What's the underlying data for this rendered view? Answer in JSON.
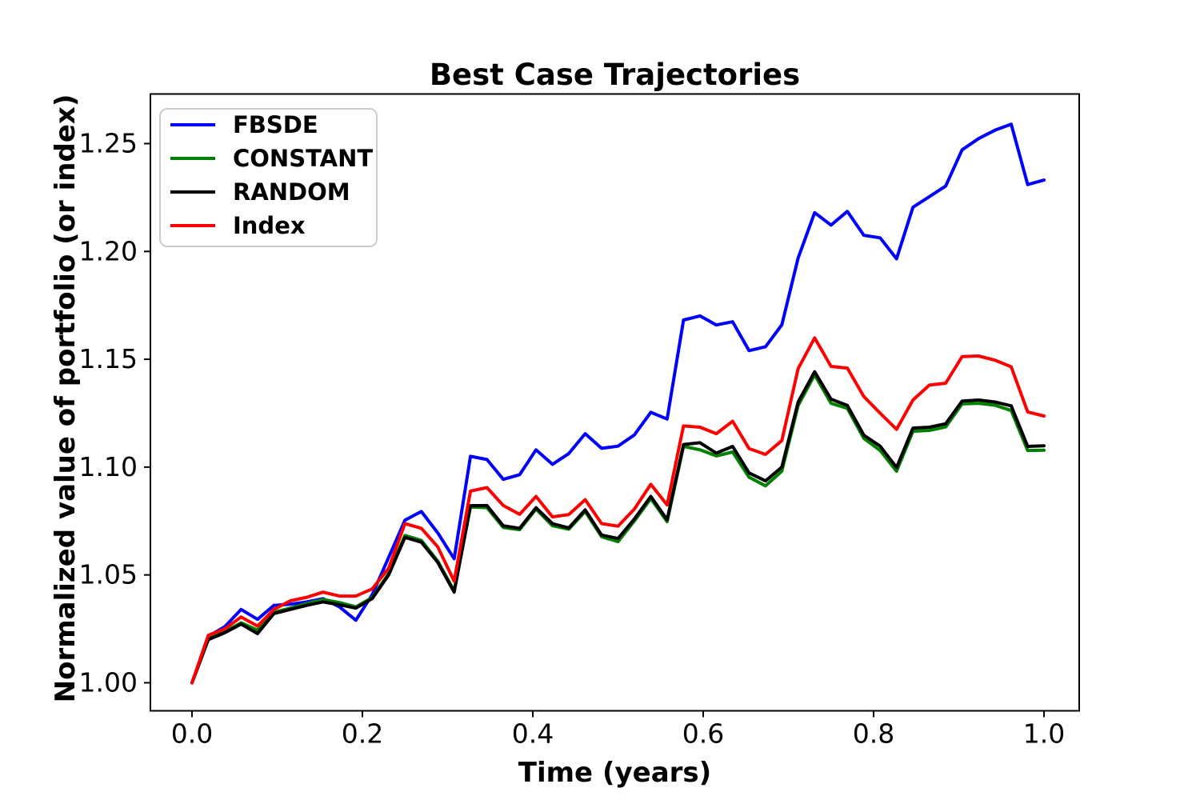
{
  "figure": {
    "background": "#ffffff",
    "spine_color": "#000000",
    "text_color": "#000000",
    "legend": {
      "position": "upper left",
      "border_color": "#cccccc",
      "fill": "#ffffff",
      "entries": [
        {
          "label": "FBSDE",
          "color": "#0000ff"
        },
        {
          "label": "CONSTANT",
          "color": "#008000"
        },
        {
          "label": "RANDOM",
          "color": "#000000"
        },
        {
          "label": "Index",
          "color": "#ff0000"
        }
      ]
    }
  },
  "chart_data": {
    "type": "line",
    "title": "Best Case Trajectories",
    "xlabel": "Time (years)",
    "ylabel": "Normalized value of portfolio (or index)",
    "xlim": [
      -0.0488,
      1.0413
    ],
    "ylim": [
      0.987,
      1.273
    ],
    "xticks": [
      0.0,
      0.2,
      0.4,
      0.6,
      0.8,
      1.0
    ],
    "yticks": [
      1.0,
      1.05,
      1.1,
      1.15,
      1.2,
      1.25
    ],
    "grid": false,
    "legend_position": "upper left",
    "x": [
      0.0,
      0.0192,
      0.0385,
      0.0577,
      0.0769,
      0.0962,
      0.1154,
      0.1346,
      0.1538,
      0.1731,
      0.1923,
      0.2115,
      0.2308,
      0.25,
      0.2692,
      0.2885,
      0.3077,
      0.3269,
      0.3462,
      0.3654,
      0.3846,
      0.4038,
      0.4231,
      0.4423,
      0.4615,
      0.4808,
      0.5,
      0.5192,
      0.5385,
      0.5577,
      0.5769,
      0.5962,
      0.6154,
      0.6346,
      0.6538,
      0.6731,
      0.6923,
      0.7115,
      0.7308,
      0.75,
      0.7692,
      0.7885,
      0.8077,
      0.8269,
      0.8462,
      0.8654,
      0.8846,
      0.9038,
      0.9231,
      0.9423,
      0.9615,
      0.9808,
      1.0
    ],
    "series": [
      {
        "name": "FBSDE",
        "color": "#0000ff",
        "values": [
          1.0,
          1.0215,
          1.026,
          1.034,
          1.0294,
          1.0359,
          1.0364,
          1.0375,
          1.039,
          1.0352,
          1.029,
          1.0408,
          1.0581,
          1.0754,
          1.0794,
          1.0695,
          1.0575,
          1.105,
          1.1035,
          1.0943,
          1.0965,
          1.108,
          1.1013,
          1.1063,
          1.1155,
          1.1087,
          1.1097,
          1.1149,
          1.1254,
          1.1223,
          1.1682,
          1.1701,
          1.1659,
          1.1674,
          1.154,
          1.1558,
          1.166,
          1.197,
          1.218,
          1.2122,
          1.2186,
          1.2075,
          1.2063,
          1.1966,
          1.2205,
          1.2254,
          1.2303,
          1.2471,
          1.2523,
          1.2562,
          1.259,
          1.231,
          1.2331
        ]
      },
      {
        "name": "CONSTANT",
        "color": "#008000",
        "values": [
          1.0,
          1.0205,
          1.0237,
          1.0278,
          1.0244,
          1.0327,
          1.0346,
          1.0367,
          1.0386,
          1.0372,
          1.0352,
          1.0395,
          1.0506,
          1.0683,
          1.066,
          1.0564,
          1.0426,
          1.0815,
          1.0812,
          1.072,
          1.071,
          1.0805,
          1.0728,
          1.0712,
          1.0794,
          1.0677,
          1.0654,
          1.075,
          1.0854,
          1.0747,
          1.1096,
          1.108,
          1.1052,
          1.107,
          1.0953,
          1.0913,
          1.0981,
          1.1286,
          1.1428,
          1.1296,
          1.1272,
          1.1133,
          1.1077,
          1.0981,
          1.1166,
          1.117,
          1.1186,
          1.1293,
          1.1296,
          1.1287,
          1.1262,
          1.1077,
          1.1078
        ]
      },
      {
        "name": "RANDOM",
        "color": "#000000",
        "values": [
          1.0,
          1.02,
          1.0232,
          1.0272,
          1.0228,
          1.0321,
          1.034,
          1.0359,
          1.0375,
          1.0362,
          1.0346,
          1.039,
          1.05,
          1.0674,
          1.0652,
          1.0558,
          1.042,
          1.0821,
          1.0822,
          1.0728,
          1.0716,
          1.0812,
          1.0738,
          1.0718,
          1.0802,
          1.0685,
          1.0669,
          1.0759,
          1.0864,
          1.0756,
          1.1105,
          1.1113,
          1.1065,
          1.1096,
          1.0973,
          1.0936,
          1.1,
          1.1302,
          1.1442,
          1.1315,
          1.1286,
          1.1148,
          1.1097,
          1.0998,
          1.1181,
          1.1185,
          1.1201,
          1.1306,
          1.1311,
          1.1302,
          1.1284,
          1.1096,
          1.1099
        ]
      },
      {
        "name": "Index",
        "color": "#ff0000",
        "values": [
          1.0,
          1.022,
          1.025,
          1.0305,
          1.0263,
          1.034,
          1.038,
          1.0396,
          1.042,
          1.0402,
          1.0402,
          1.0435,
          1.0531,
          1.0738,
          1.0716,
          1.063,
          1.0471,
          1.0889,
          1.0905,
          1.0822,
          1.0781,
          1.0864,
          1.0769,
          1.078,
          1.0849,
          1.0738,
          1.0726,
          1.0805,
          1.092,
          1.0825,
          1.1191,
          1.1185,
          1.1155,
          1.1213,
          1.1086,
          1.1059,
          1.1123,
          1.1457,
          1.1599,
          1.1467,
          1.1459,
          1.1327,
          1.125,
          1.1175,
          1.1311,
          1.138,
          1.1389,
          1.1512,
          1.1515,
          1.1496,
          1.1465,
          1.1256,
          1.1237
        ]
      }
    ]
  }
}
